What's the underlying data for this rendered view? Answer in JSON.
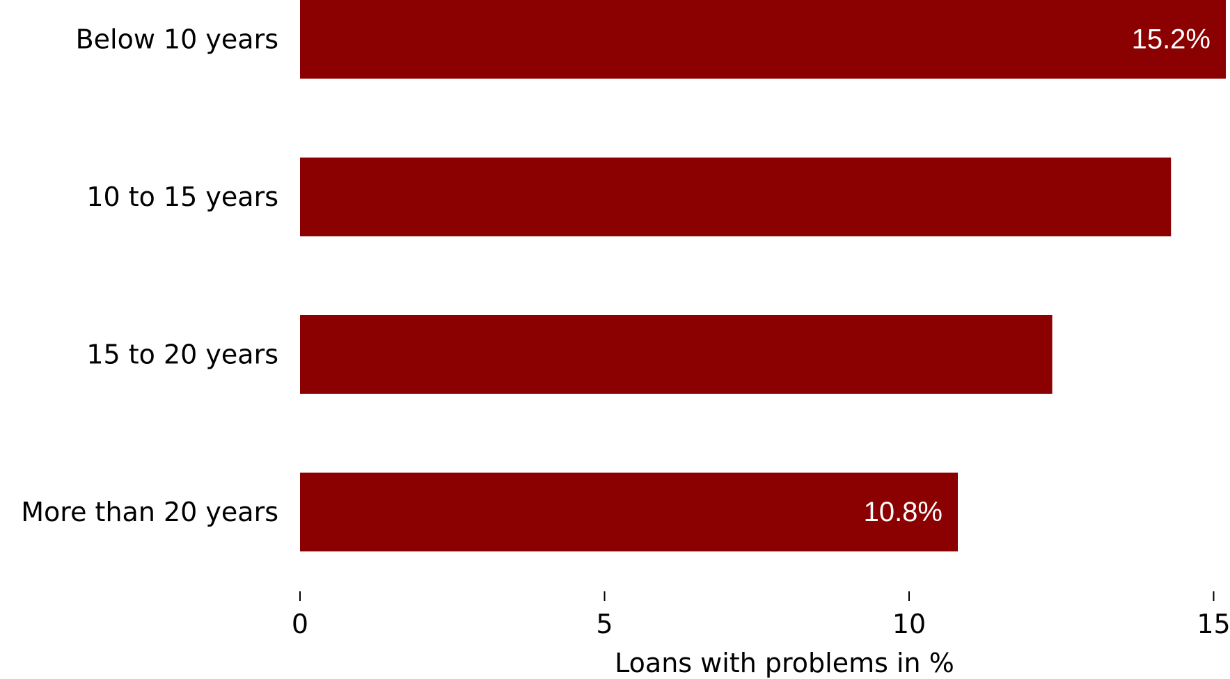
{
  "chart_data": {
    "type": "bar",
    "orientation": "horizontal",
    "categories": [
      "Below 10 years",
      "10 to 15 years",
      "15 to 20 years",
      "More than 20 years"
    ],
    "values": [
      15.2,
      14.3,
      12.35,
      10.8
    ],
    "data_labels": [
      "15.2%",
      "",
      "",
      "10.8%"
    ],
    "xlabel": "Loans with problems in %",
    "ylabel": "",
    "xlim": [
      0,
      15
    ],
    "xticks": [
      0,
      5,
      10,
      15
    ],
    "xtick_labels": [
      "0",
      "5",
      "10",
      "15"
    ],
    "grid": false,
    "legend": "none",
    "bar_color": "#8b0000",
    "label_color": "#ffffff"
  }
}
